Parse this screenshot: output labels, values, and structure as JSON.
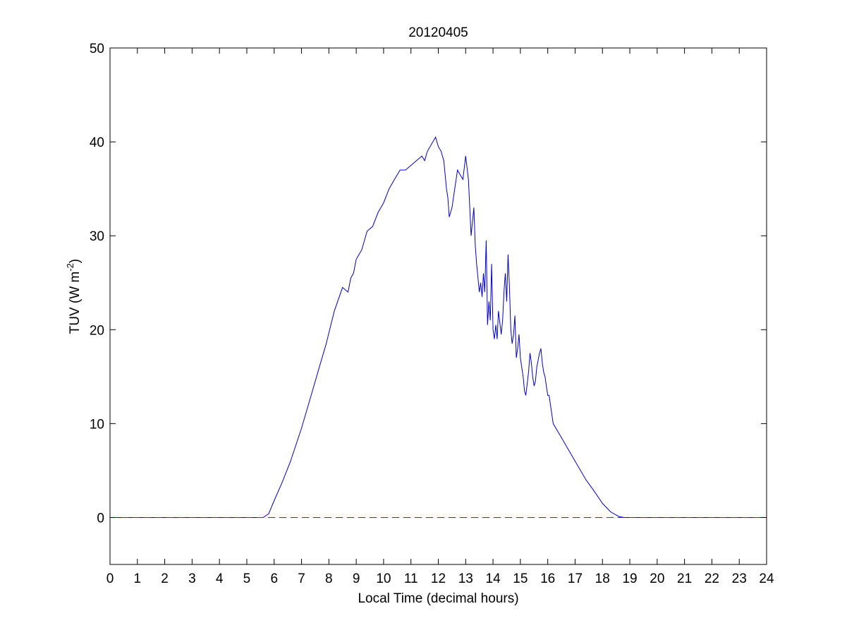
{
  "chart_data": {
    "type": "line",
    "title": "20120405",
    "xlabel": "Local Time (decimal hours)",
    "ylabel": "TUV (W m",
    "ylabel_superscript": "-2",
    "ylabel_close": ")",
    "xlim": [
      0,
      24
    ],
    "ylim": [
      -5,
      50
    ],
    "xticks": [
      0,
      1,
      2,
      3,
      4,
      5,
      6,
      7,
      8,
      9,
      10,
      11,
      12,
      13,
      14,
      15,
      16,
      17,
      18,
      19,
      20,
      21,
      22,
      23,
      24
    ],
    "yticks": [
      0,
      10,
      20,
      30,
      40,
      50
    ],
    "grid": false,
    "legend": "none",
    "box": true,
    "series": [
      {
        "color": "#0000cc",
        "style": "solid",
        "x": [
          0,
          5.6,
          5.8,
          6.0,
          6.3,
          6.6,
          7.0,
          7.3,
          7.6,
          7.9,
          8.2,
          8.5,
          8.7,
          8.8,
          8.9,
          9.0,
          9.2,
          9.4,
          9.6,
          9.8,
          10.0,
          10.2,
          10.4,
          10.6,
          10.8,
          11.0,
          11.2,
          11.4,
          11.5,
          11.6,
          11.8,
          11.9,
          12.0,
          12.1,
          12.2,
          12.25,
          12.3,
          12.35,
          12.4,
          12.5,
          12.6,
          12.7,
          12.8,
          12.9,
          13.0,
          13.1,
          13.2,
          13.3,
          13.35,
          13.4,
          13.5,
          13.55,
          13.6,
          13.65,
          13.7,
          13.75,
          13.8,
          13.85,
          13.9,
          13.95,
          14.0,
          14.05,
          14.1,
          14.15,
          14.2,
          14.3,
          14.35,
          14.4,
          14.45,
          14.5,
          14.55,
          14.6,
          14.65,
          14.7,
          14.75,
          14.8,
          14.85,
          14.9,
          14.95,
          15.0,
          15.05,
          15.1,
          15.15,
          15.2,
          15.3,
          15.35,
          15.4,
          15.45,
          15.5,
          15.55,
          15.6,
          15.7,
          15.75,
          15.8,
          15.85,
          15.9,
          15.95,
          16.0,
          16.05,
          16.1,
          16.2,
          16.5,
          16.8,
          17.1,
          17.4,
          17.7,
          18.0,
          18.3,
          18.6,
          18.8,
          19.0,
          24
        ],
        "y": [
          0,
          0,
          0.4,
          1.8,
          3.8,
          6.0,
          9.5,
          12.5,
          15.5,
          18.5,
          22.0,
          24.5,
          24.0,
          25.5,
          26.0,
          27.5,
          28.5,
          30.5,
          31.0,
          32.5,
          33.5,
          35.0,
          36.0,
          37.0,
          37.0,
          37.5,
          38.0,
          38.5,
          38.0,
          39.0,
          40.0,
          40.5,
          39.5,
          39.0,
          38.0,
          36.5,
          35.0,
          34.0,
          32.0,
          33.0,
          35.0,
          37.0,
          36.5,
          36.0,
          38.5,
          36.0,
          30.0,
          33.0,
          29.0,
          27.0,
          24.0,
          25.0,
          23.5,
          26.0,
          24.0,
          29.5,
          20.5,
          23.0,
          21.0,
          27.0,
          20.0,
          19.0,
          20.5,
          19.0,
          22.0,
          19.5,
          21.0,
          24.0,
          26.0,
          23.0,
          28.0,
          24.5,
          20.0,
          18.5,
          19.5,
          21.5,
          17.0,
          18.0,
          19.5,
          17.0,
          16.0,
          15.0,
          13.5,
          13.0,
          15.5,
          17.5,
          16.5,
          15.0,
          14.0,
          14.5,
          16.0,
          17.5,
          18.0,
          16.5,
          15.5,
          15.0,
          14.0,
          13.0,
          13.0,
          12.0,
          10.0,
          8.5,
          7.0,
          5.5,
          4.0,
          2.8,
          1.5,
          0.6,
          0.1,
          0,
          0,
          0
        ]
      },
      {
        "color": "#cc0000",
        "style": "dashed",
        "x": [
          0,
          24
        ],
        "y": [
          0,
          0
        ]
      }
    ]
  }
}
